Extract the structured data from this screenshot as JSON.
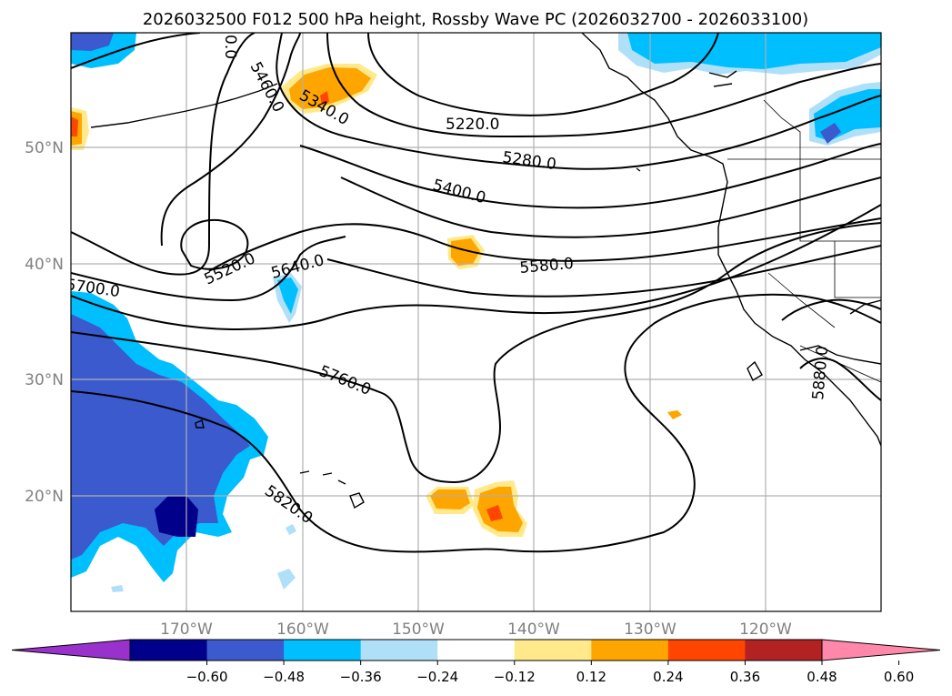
{
  "title": "2026032500 F012 500 hPa height, Rossby Wave PC (2026032700 - 2026033100)",
  "map": {
    "lon_labels": [
      "170°W",
      "160°W",
      "150°W",
      "140°W",
      "130°W",
      "120°W"
    ],
    "lat_labels": [
      "50°N",
      "40°N",
      "30°N",
      "20°N"
    ],
    "gridlines": true
  },
  "contour_labels": [
    {
      "id": "c5340",
      "text": "5340.0"
    },
    {
      "id": "c5460",
      "text": "5460.0"
    },
    {
      "id": "c5400",
      "text": "5400.0"
    },
    {
      "id": "c5220",
      "text": "5220.0"
    },
    {
      "id": "c5280",
      "text": "5280.0"
    },
    {
      "id": "c5520",
      "text": "5520.0"
    },
    {
      "id": "c5640",
      "text": "5640.0"
    },
    {
      "id": "c5580",
      "text": "5580.0"
    },
    {
      "id": "c5700",
      "text": "5700.0"
    },
    {
      "id": "c5760",
      "text": "5760.0"
    },
    {
      "id": "c5820",
      "text": "5820.0"
    },
    {
      "id": "c5880",
      "text": "5880.0"
    },
    {
      "id": "c00",
      "text": "0.0"
    }
  ],
  "colorbar": {
    "ticks": [
      "−0.60",
      "−0.48",
      "−0.36",
      "−0.24",
      "−0.12",
      "0.12",
      "0.24",
      "0.36",
      "0.48",
      "0.60"
    ],
    "colors": [
      "#9932cc",
      "#00008b",
      "#3a5acd",
      "#00bfff",
      "#b0e0f8",
      "#ffffff",
      "#ffe98a",
      "#ffa500",
      "#ff4500",
      "#b22222",
      "#ff88aa"
    ],
    "extend": "both"
  }
}
